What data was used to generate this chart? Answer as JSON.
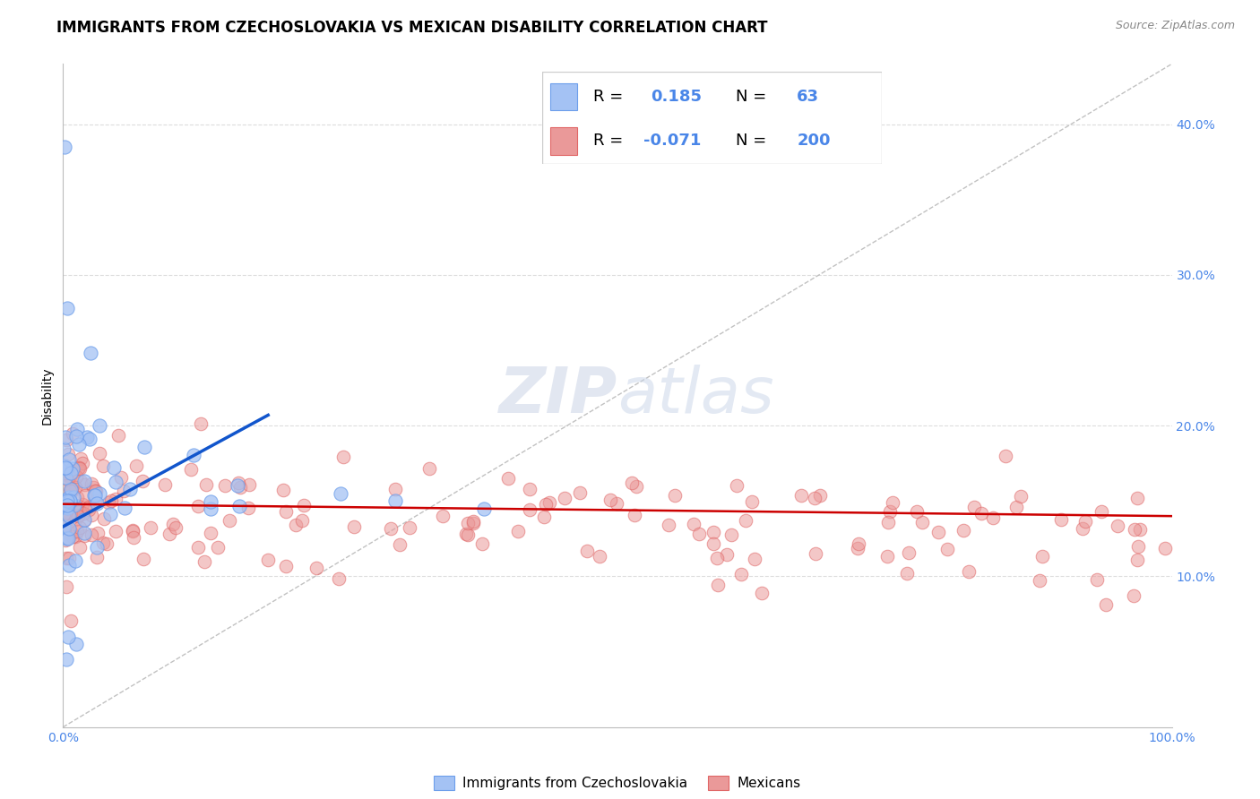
{
  "title": "IMMIGRANTS FROM CZECHOSLOVAKIA VS MEXICAN DISABILITY CORRELATION CHART",
  "source": "Source: ZipAtlas.com",
  "ylabel": "Disability",
  "xlim": [
    0.0,
    1.0
  ],
  "ylim": [
    0.0,
    0.44
  ],
  "blue_color": "#a4c2f4",
  "blue_edge_color": "#6d9eeb",
  "pink_color": "#ea9999",
  "pink_edge_color": "#e06666",
  "blue_line_color": "#1155cc",
  "pink_line_color": "#cc0000",
  "dash_line_color": "#b7b7b7",
  "tick_color": "#4a86e8",
  "title_fontsize": 12,
  "axis_label_fontsize": 10,
  "tick_fontsize": 10,
  "legend_fontsize": 13
}
